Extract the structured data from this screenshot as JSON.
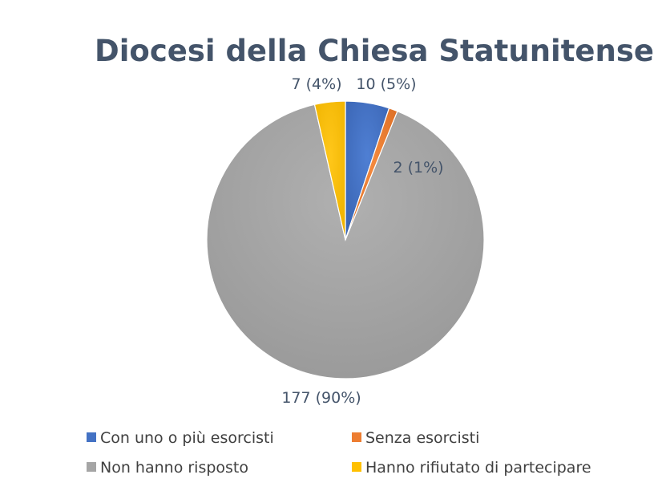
{
  "chart_data": {
    "type": "pie",
    "title": "Diocesi della Chiesa Statunitense",
    "slices": [
      {
        "label": "Con uno o più esorcisti",
        "value": 10,
        "percent": 5,
        "data_label": "10 (5%)",
        "color": "#4472c4"
      },
      {
        "label": "Senza esorcisti",
        "value": 2,
        "percent": 1,
        "data_label": "2 (1%)",
        "color": "#ed7d31"
      },
      {
        "label": "Non hanno risposto",
        "value": 177,
        "percent": 90,
        "data_label": "177 (90%)",
        "color": "#a5a5a5"
      },
      {
        "label": "Hanno rifiutato di partecipare",
        "value": 7,
        "percent": 4,
        "data_label": "7 (4%)",
        "color": "#ffc000"
      }
    ],
    "start_angle": "12 o'clock",
    "direction": "clockwise",
    "legend_position": "bottom"
  }
}
